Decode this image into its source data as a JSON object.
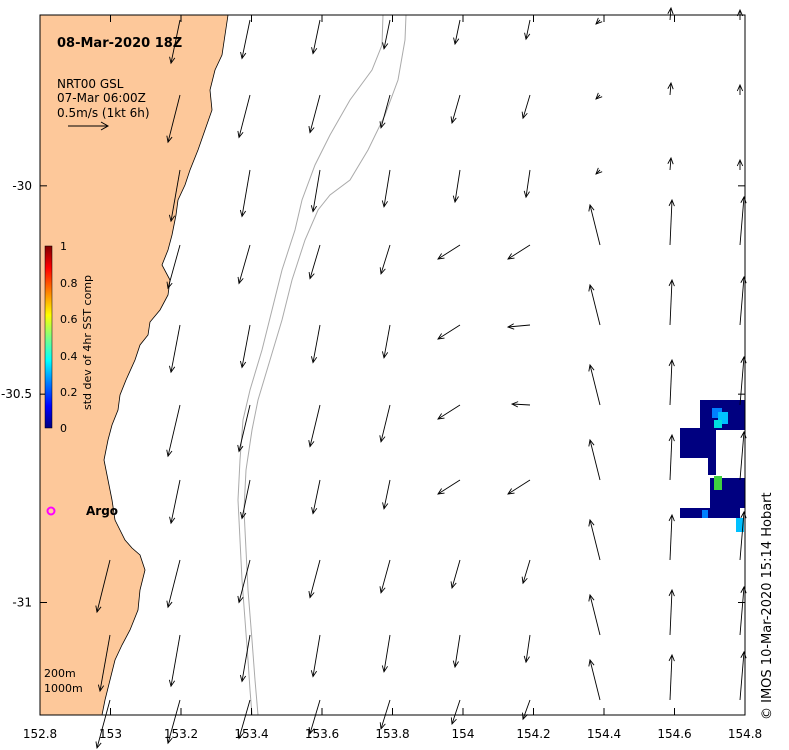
{
  "title": "08-Mar-2020 18Z",
  "legend": {
    "source": "NRT00 GSL",
    "time": "07-Mar 06:00Z",
    "scale": "0.5m/s (1kt 6h)"
  },
  "colorbar": {
    "label": "std dev of 4hr SST comp",
    "ticks": [
      "1",
      "0.8",
      "0.6",
      "0.4",
      "0.2",
      "0"
    ],
    "colors": [
      "#000080",
      "#0000ff",
      "#0080ff",
      "#00ffff",
      "#80ff80",
      "#ffff00",
      "#ff8000",
      "#ff0000",
      "#800000"
    ]
  },
  "axes": {
    "x_ticks": [
      "152.8",
      "153",
      "153.2",
      "153.4",
      "153.6",
      "153.8",
      "154",
      "154.2",
      "154.4",
      "154.6",
      "154.8"
    ],
    "y_ticks": [
      "-30",
      "-30.5",
      "-31"
    ],
    "x_range": [
      152.8,
      154.8
    ],
    "y_range": [
      -31.27,
      -29.59
    ]
  },
  "argo_label": "Argo",
  "contours": {
    "shallow": "200m",
    "deep": "1000m"
  },
  "credit": "© IMOS 10-Mar-2020 15:14 Hobart",
  "colors": {
    "land": "#fdc89a",
    "argo": "#ff00ff",
    "contour": "#aaaaaa"
  }
}
